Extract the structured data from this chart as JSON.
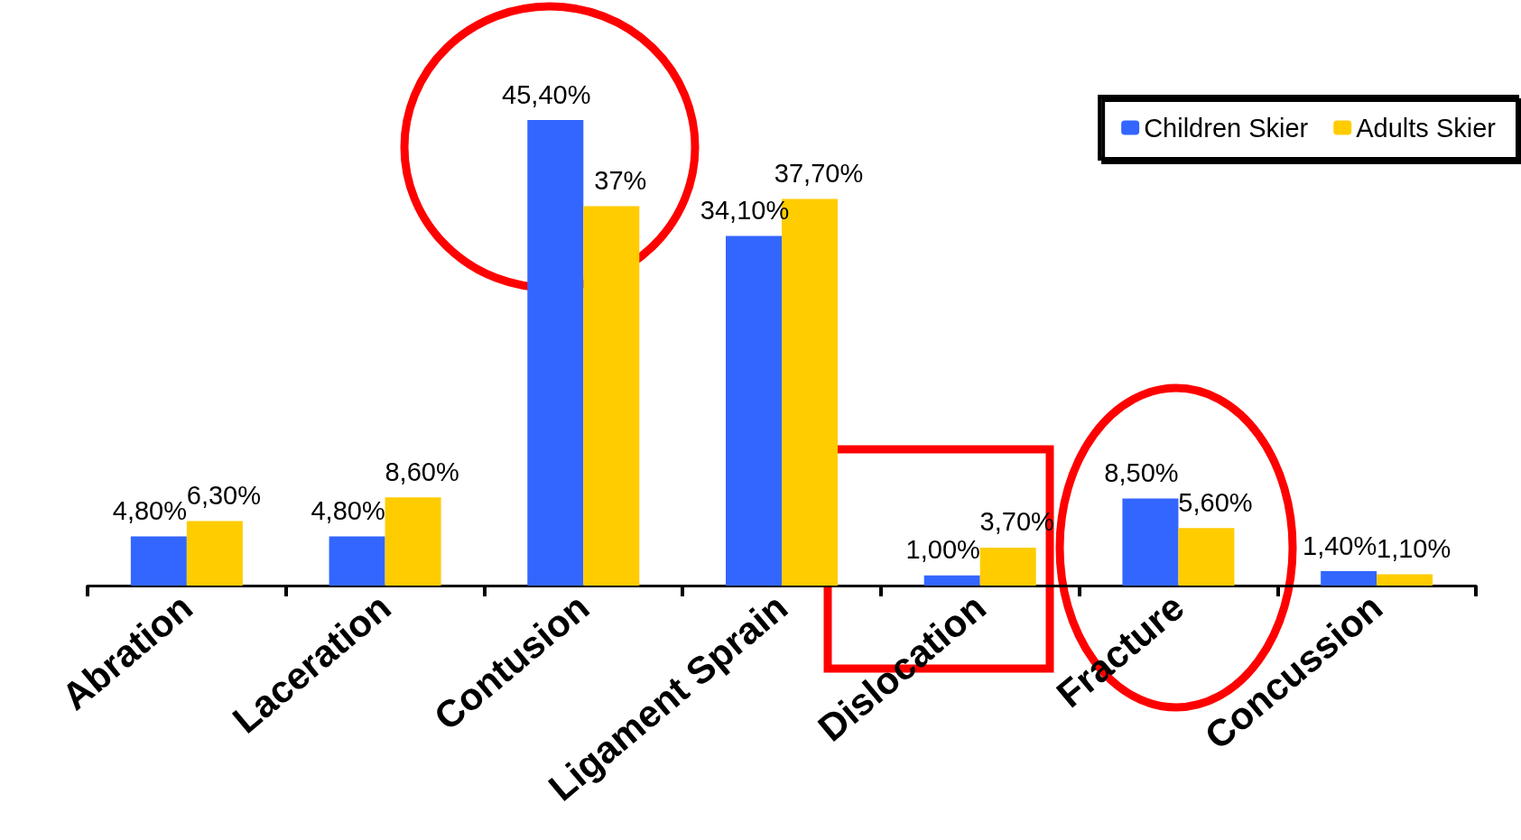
{
  "chart_data": {
    "type": "bar",
    "categories": [
      "Abration",
      "Laceration",
      "Contusion",
      "Ligament Sprain",
      "Dislocation",
      "Fracture",
      "Concussion"
    ],
    "series": [
      {
        "name": "Children Skier",
        "color": "#3366ff",
        "values": [
          4.8,
          4.8,
          45.4,
          34.1,
          1.0,
          8.5,
          1.4
        ],
        "value_labels": [
          "4,80%",
          "4,80%",
          "45,40%",
          "34,10%",
          "1,00%",
          "8,50%",
          "1,40%"
        ]
      },
      {
        "name": "Adults Skier",
        "color": "#ffcc00",
        "values": [
          6.3,
          8.6,
          37,
          37.7,
          3.7,
          5.6,
          1.1
        ],
        "value_labels": [
          "6,30%",
          "8,60%",
          "37%",
          "37,70%",
          "3,70%",
          "5,60%",
          "1,10%"
        ]
      }
    ],
    "legend": "top right",
    "tick_labels": "x"
  }
}
